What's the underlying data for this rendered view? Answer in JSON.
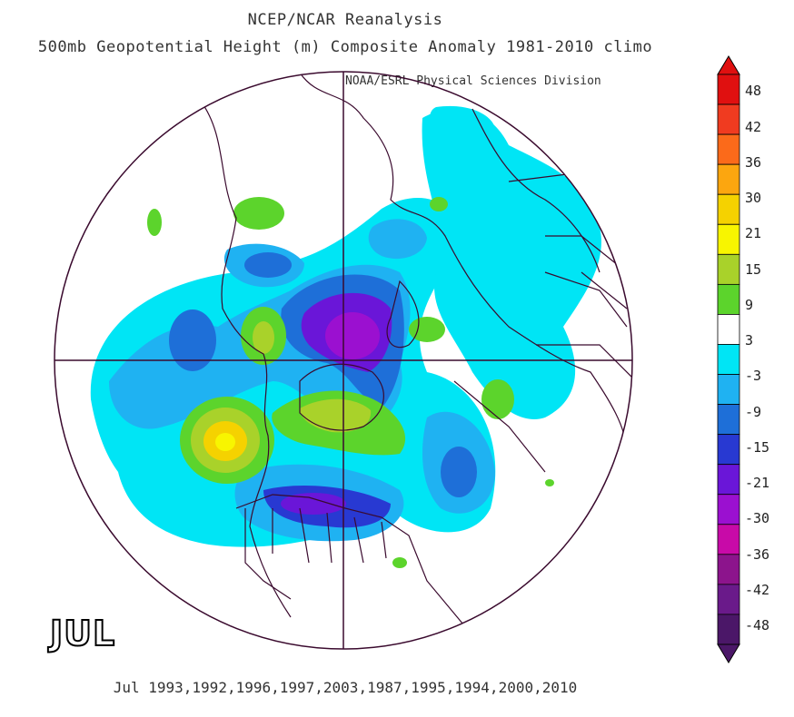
{
  "title": {
    "line1": "NCEP/NCAR Reanalysis",
    "line2": "500mb Geopotential Height (m) Composite Anomaly 1981-2010 climo",
    "credit": "NOAA/ESRL Physical Sciences Division"
  },
  "month_label": "JUL",
  "footer": "Jul 1993,1992,1996,1997,2003,1987,1995,1994,2000,2010",
  "colorbar": {
    "levels": [
      {
        "label": "48",
        "color": "#e01010"
      },
      {
        "label": "42",
        "color": "#f03b20"
      },
      {
        "label": "36",
        "color": "#fb6a1a"
      },
      {
        "label": "30",
        "color": "#fca60f"
      },
      {
        "label": "21",
        "color": "#f5d200"
      },
      {
        "label": "15",
        "color": "#f8f500"
      },
      {
        "label": "9",
        "color": "#a9d22a"
      },
      {
        "label": "3",
        "color": "#5cd42c"
      },
      {
        "label": "-3",
        "color": "#ffffff"
      },
      {
        "label": "-9",
        "color": "#00e5f5"
      },
      {
        "label": "-15",
        "color": "#1fb2f2"
      },
      {
        "label": "-21",
        "color": "#1e6fd8"
      },
      {
        "label": "-30",
        "color": "#2839d2"
      },
      {
        "label": "-36",
        "color": "#6a16d8"
      },
      {
        "label": "-42",
        "color": "#9b10d0"
      },
      {
        "label": "-48",
        "color": "#c80aa8"
      }
    ],
    "bottom_colors": [
      "#8c148c",
      "#6a1a8a",
      "#4b1768"
    ]
  }
}
